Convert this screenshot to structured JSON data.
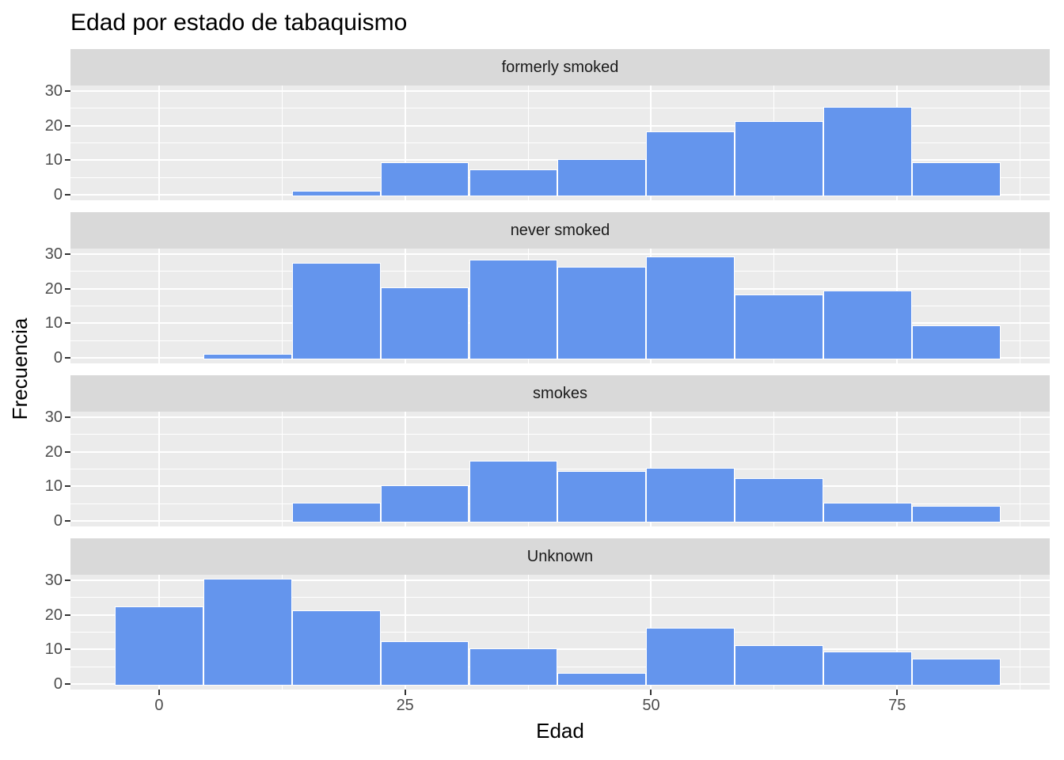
{
  "title": "Edad por estado de tabaquismo",
  "chart_data": {
    "type": "bar",
    "subtype": "faceted-histogram",
    "title": "Edad por estado de tabaquismo",
    "xlabel": "Edad",
    "ylabel": "Frecuencia",
    "xlim": [
      -9,
      90.5
    ],
    "ylim": [
      -1.5,
      31.5
    ],
    "x_ticks": [
      0,
      25,
      50,
      75
    ],
    "x_minor_ticks": [
      12.5,
      37.5,
      62.5,
      87.5
    ],
    "y_ticks": [
      0,
      10,
      20,
      30
    ],
    "y_minor_ticks": [
      5,
      15,
      25
    ],
    "grid": "on",
    "legend": "none",
    "bin_edges": [
      -4.5,
      4.5,
      13.5,
      22.5,
      31.5,
      40.5,
      49.5,
      58.5,
      67.5,
      76.5,
      85.5
    ],
    "facets": [
      {
        "label": "formerly smoked",
        "counts": [
          0,
          0,
          1,
          9,
          7,
          10,
          18,
          21,
          25,
          9
        ]
      },
      {
        "label": "never smoked",
        "counts": [
          0,
          1,
          27,
          20,
          28,
          26,
          29,
          18,
          19,
          9
        ]
      },
      {
        "label": "smokes",
        "counts": [
          0,
          0,
          5,
          10,
          17,
          14,
          15,
          12,
          5,
          4
        ]
      },
      {
        "label": "Unknown",
        "counts": [
          22,
          30,
          21,
          12,
          10,
          3,
          16,
          11,
          9,
          7
        ]
      }
    ],
    "colors": {
      "bar_fill": "#6495ED",
      "bar_stroke": "#FFFFFF",
      "panel_bg": "#EBEBEB",
      "strip_bg": "#D9D9D9",
      "gridline": "#FFFFFF",
      "tick_label": "#4D4D4D",
      "tick_mark": "#333333",
      "axis_title": "#000000",
      "title": "#000000"
    }
  }
}
